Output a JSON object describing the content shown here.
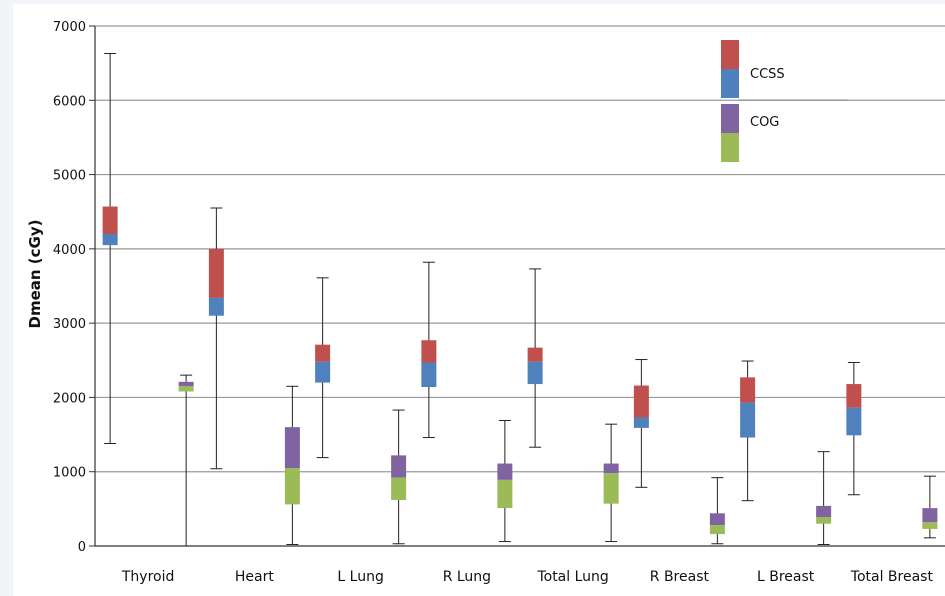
{
  "chart_data": {
    "type": "box",
    "title": "",
    "xlabel": "",
    "ylabel": "Dmean (cGy)",
    "ylim": [
      0,
      7000
    ],
    "yticks": [
      0,
      1000,
      2000,
      3000,
      4000,
      5000,
      6000,
      7000
    ],
    "grid": true,
    "legend_position": "top-right",
    "categories": [
      "Thyroid",
      "Heart",
      "L Lung",
      "R Lung",
      "Total Lung",
      "R Breast",
      "L Breast",
      "Total Breast"
    ],
    "series": [
      {
        "name": "CCSS",
        "colors": {
          "upper": "#c0504d",
          "lower": "#4f81bd"
        },
        "boxes": [
          {
            "min": 1380,
            "q1": 4050,
            "median": 4200,
            "q3": 4570,
            "max": 6630
          },
          {
            "min": 1040,
            "q1": 3100,
            "median": 3340,
            "q3": 4000,
            "max": 4550
          },
          {
            "min": 1190,
            "q1": 2200,
            "median": 2480,
            "q3": 2710,
            "max": 3610
          },
          {
            "min": 1460,
            "q1": 2140,
            "median": 2470,
            "q3": 2770,
            "max": 3820
          },
          {
            "min": 1330,
            "q1": 2180,
            "median": 2480,
            "q3": 2670,
            "max": 3730
          },
          {
            "min": 790,
            "q1": 1590,
            "median": 1730,
            "q3": 2160,
            "max": 2510
          },
          {
            "min": 610,
            "q1": 1460,
            "median": 1930,
            "q3": 2270,
            "max": 2490
          },
          {
            "min": 690,
            "q1": 1490,
            "median": 1860,
            "q3": 2180,
            "max": 2470
          }
        ]
      },
      {
        "name": "COG",
        "colors": {
          "upper": "#8064a2",
          "lower": "#9bbb59"
        },
        "boxes": [
          {
            "min": 0,
            "q1": 2080,
            "median": 2150,
            "q3": 2210,
            "max": 2300
          },
          {
            "min": 20,
            "q1": 560,
            "median": 1050,
            "q3": 1600,
            "max": 2150
          },
          {
            "min": 30,
            "q1": 620,
            "median": 920,
            "q3": 1220,
            "max": 1830
          },
          {
            "min": 60,
            "q1": 510,
            "median": 890,
            "q3": 1110,
            "max": 1690
          },
          {
            "min": 60,
            "q1": 570,
            "median": 980,
            "q3": 1110,
            "max": 1640
          },
          {
            "min": 30,
            "q1": 160,
            "median": 280,
            "q3": 440,
            "max": 920
          },
          {
            "min": 20,
            "q1": 300,
            "median": 390,
            "q3": 540,
            "max": 1270
          },
          {
            "min": 110,
            "q1": 230,
            "median": 320,
            "q3": 510,
            "max": 940
          }
        ]
      }
    ]
  }
}
